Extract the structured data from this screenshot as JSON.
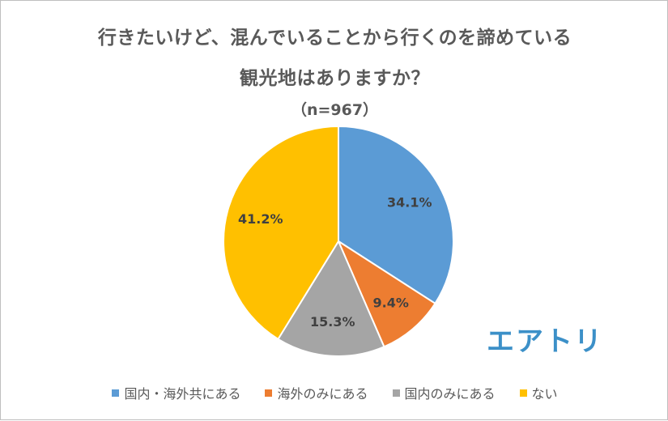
{
  "chart_data": {
    "type": "pie",
    "title_line1": "行きたいけど、混んでいることから行くのを諦めている",
    "title_line2": "観光地はありますか？",
    "subtitle": "（n=967）",
    "start_angle_deg": 0,
    "direction": "clockwise",
    "legend_position": "bottom",
    "slices": [
      {
        "name": "国内・海外共にある",
        "value": 34.1,
        "label": "34.1%",
        "color": "#5b9bd5"
      },
      {
        "name": "海外のみにある",
        "value": 9.4,
        "label": "9.4%",
        "color": "#ed7d31"
      },
      {
        "name": "国内のみにある",
        "value": 15.3,
        "label": "15.3%",
        "color": "#a5a5a5"
      },
      {
        "name": "ない",
        "value": 41.2,
        "label": "41.2%",
        "color": "#ffc000"
      }
    ]
  },
  "logo": {
    "text": "エアトリ",
    "color": "#3c90c8"
  }
}
